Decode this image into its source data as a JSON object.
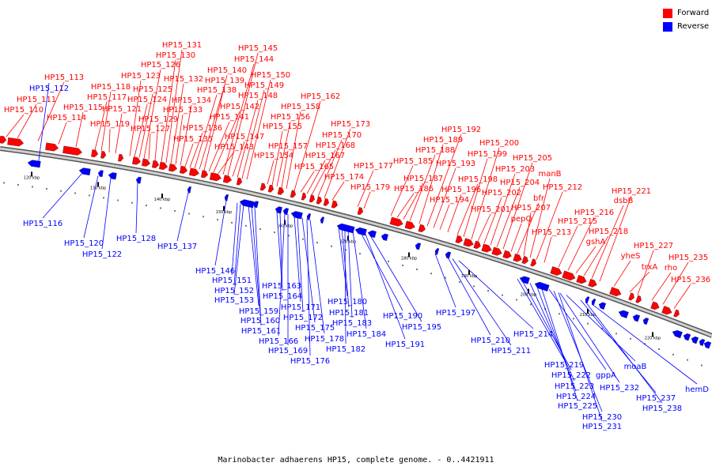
{
  "legend": {
    "forward_label": "Forward",
    "forward_color": "#ff0000",
    "reverse_label": "Reverse",
    "reverse_color": "#0000ff"
  },
  "caption": "Marinobacter adhaerens HP15, complete genome. - 0..4421911",
  "scale_ticks": [
    "120 kbp",
    "130 kbp",
    "140 kbp",
    "150 kbp",
    "160 kbp",
    "170 kbp",
    "180 kbp",
    "190 kbp",
    "200 kbp",
    "210 kbp",
    "220 kbp"
  ],
  "forward_genes": [
    "HP15_110",
    "HP15_111",
    "HP15_113",
    "HP15_114",
    "HP15_115",
    "HP15_117",
    "HP15_118",
    "HP15_119",
    "HP15_121",
    "HP15_123",
    "HP15_124",
    "HP15_125",
    "HP15_126",
    "HP15_127",
    "HP15_129",
    "HP15_130",
    "HP15_131",
    "HP15_132",
    "HP15_133",
    "HP15_134",
    "HP15_135",
    "HP15_136",
    "HP15_138",
    "HP15_139",
    "HP15_140",
    "HP15_141",
    "HP15_142",
    "HP15_143",
    "HP15_144",
    "HP15_145",
    "HP15_147",
    "HP15_148",
    "HP15_149",
    "HP15_150",
    "HP15_154",
    "HP15_155",
    "HP15_156",
    "HP15_157",
    "HP15_158",
    "HP15_162",
    "HP15_165",
    "HP15_167",
    "HP15_168",
    "HP15_170",
    "HP15_173",
    "HP15_174",
    "HP15_177",
    "HP15_179",
    "HP15_185",
    "HP15_186",
    "HP15_187",
    "HP15_188",
    "HP15_189",
    "HP15_192",
    "HP15_193",
    "HP15_194",
    "HP15_196",
    "HP15_198",
    "HP15_199",
    "HP15_200",
    "HP15_201",
    "HP15_202",
    "HP15_203",
    "HP15_204",
    "HP15_205",
    "pepQ",
    "bfr",
    "HP15_207",
    "manB",
    "HP15_212",
    "HP15_213",
    "HP15_215",
    "HP15_216",
    "gshA",
    "HP15_218",
    "dsbB",
    "HP15_221",
    "yheS",
    "trxA",
    "HP15_227",
    "rho",
    "HP15_235",
    "HP15_236"
  ],
  "reverse_genes": [
    "HP15_112",
    "HP15_116",
    "HP15_120",
    "HP15_122",
    "HP15_128",
    "HP15_137",
    "HP15_146",
    "HP15_151",
    "HP15_152",
    "HP15_153",
    "HP15_159",
    "HP15_160",
    "HP15_161",
    "HP15_163",
    "HP15_164",
    "HP15_166",
    "HP15_169",
    "HP15_171",
    "HP15_172",
    "HP15_175",
    "HP15_176",
    "HP15_178",
    "HP15_180",
    "HP15_181",
    "HP15_182",
    "HP15_183",
    "HP15_184",
    "HP15_190",
    "HP15_191",
    "HP15_195",
    "HP15_197",
    "HP15_210",
    "HP15_211",
    "HP15_214",
    "HP15_219",
    "HP15_222",
    "HP15_223",
    "HP15_224",
    "HP15_225",
    "gppA",
    "HP15_230",
    "HP15_231",
    "HP15_232",
    "moaB",
    "HP15_237",
    "HP15_238",
    "hemD"
  ]
}
